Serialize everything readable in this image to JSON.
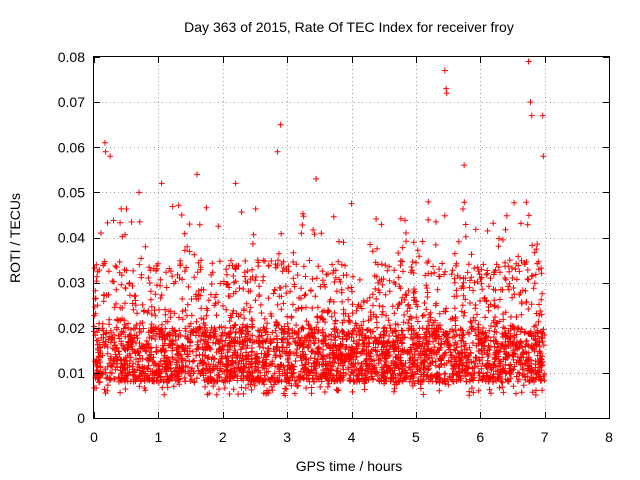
{
  "chart_data": {
    "type": "scatter",
    "title": "Day 363 of 2015, Rate Of TEC Index for receiver froy",
    "xlabel": "GPS time / hours",
    "ylabel": "ROTI / TECUs",
    "xlim": [
      0,
      8
    ],
    "ylim": [
      0,
      0.08
    ],
    "xticks": [
      0,
      1,
      2,
      3,
      4,
      5,
      6,
      7,
      8
    ],
    "xtick_labels": [
      "0",
      "1",
      "2",
      "3",
      "4",
      "5",
      "6",
      "7",
      "8"
    ],
    "yticks": [
      0,
      0.01,
      0.02,
      0.03,
      0.04,
      0.05,
      0.06,
      0.07,
      0.08
    ],
    "ytick_labels": [
      "0",
      "0.01",
      "0.02",
      "0.03",
      "0.04",
      "0.05",
      "0.06",
      "0.07",
      "0.08"
    ],
    "grid": true,
    "marker": "+",
    "color": "#ff0000",
    "series": [
      {
        "name": "ROTI",
        "x_range": [
          0,
          7
        ],
        "typical_range": [
          0.005,
          0.035
        ],
        "n_points_estimate": 3500,
        "notable_points": [
          {
            "x": 0.17,
            "y": 0.061
          },
          {
            "x": 0.18,
            "y": 0.059
          },
          {
            "x": 0.25,
            "y": 0.058
          },
          {
            "x": 0.7,
            "y": 0.05
          },
          {
            "x": 1.05,
            "y": 0.052
          },
          {
            "x": 1.6,
            "y": 0.054
          },
          {
            "x": 2.2,
            "y": 0.052
          },
          {
            "x": 2.85,
            "y": 0.059
          },
          {
            "x": 2.9,
            "y": 0.065
          },
          {
            "x": 3.45,
            "y": 0.053
          },
          {
            "x": 5.45,
            "y": 0.077
          },
          {
            "x": 5.47,
            "y": 0.073
          },
          {
            "x": 5.48,
            "y": 0.072
          },
          {
            "x": 5.75,
            "y": 0.056
          },
          {
            "x": 6.75,
            "y": 0.079
          },
          {
            "x": 6.78,
            "y": 0.07
          },
          {
            "x": 6.8,
            "y": 0.067
          },
          {
            "x": 6.97,
            "y": 0.067
          },
          {
            "x": 6.98,
            "y": 0.058
          }
        ]
      }
    ]
  }
}
